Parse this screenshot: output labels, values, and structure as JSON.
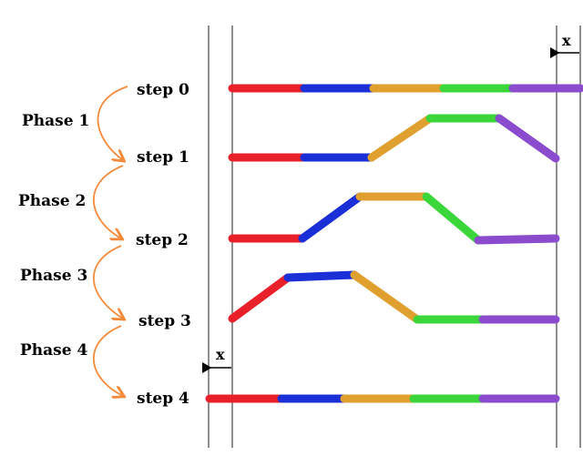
{
  "colors": {
    "red": "#e8202a",
    "blue": "#1a2fd6",
    "orange": "#e0a030",
    "green": "#3ad63a",
    "purple": "#8a4ccc",
    "arrow": "#f58a3a",
    "line": "#444444"
  },
  "steps": [
    {
      "label": "step 0"
    },
    {
      "label": "step 1"
    },
    {
      "label": "step 2"
    },
    {
      "label": "step 3"
    },
    {
      "label": "step 4"
    }
  ],
  "phases": [
    {
      "label": "Phase 1"
    },
    {
      "label": "Phase 2"
    },
    {
      "label": "Phase 3"
    },
    {
      "label": "Phase 4"
    }
  ],
  "x_markers": [
    {
      "label": "x"
    },
    {
      "label": "x"
    }
  ],
  "segment_order": [
    "red",
    "blue",
    "orange",
    "green",
    "purple"
  ]
}
